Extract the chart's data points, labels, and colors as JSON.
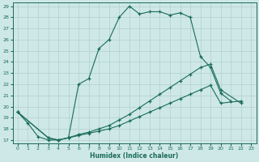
{
  "xlabel": "Humidex (Indice chaleur)",
  "bg_color": "#cee8e8",
  "line_color": "#1a6b5a",
  "grid_color": "#b0d0cc",
  "xlim": [
    0,
    23
  ],
  "ylim": [
    17,
    29
  ],
  "line1_x": [
    0,
    1,
    2,
    3,
    4,
    5,
    6,
    7,
    8,
    9,
    10,
    11,
    12,
    13,
    14,
    15,
    16,
    17,
    18,
    19,
    20,
    21
  ],
  "line1_y": [
    19.5,
    18.5,
    17.3,
    17.0,
    17.0,
    17.2,
    22.0,
    22.5,
    25.2,
    26.0,
    28.0,
    29.0,
    28.3,
    28.5,
    28.5,
    28.2,
    28.4,
    28.0,
    24.5,
    23.5,
    21.2,
    20.5
  ],
  "line2_x": [
    0,
    3,
    4,
    5,
    6,
    7,
    8,
    9,
    10,
    11,
    12,
    13,
    14,
    15,
    16,
    17,
    18,
    19,
    20,
    22
  ],
  "line2_y": [
    19.5,
    17.2,
    17.0,
    17.2,
    17.5,
    17.7,
    18.0,
    18.3,
    18.8,
    19.3,
    19.9,
    20.5,
    21.1,
    21.7,
    22.3,
    22.9,
    23.5,
    23.8,
    21.5,
    20.3
  ],
  "line3_x": [
    0,
    3,
    4,
    5,
    6,
    7,
    8,
    9,
    10,
    11,
    12,
    13,
    14,
    15,
    16,
    17,
    18,
    19,
    20,
    22
  ],
  "line3_y": [
    19.5,
    17.2,
    17.0,
    17.2,
    17.4,
    17.6,
    17.8,
    18.0,
    18.3,
    18.7,
    19.1,
    19.5,
    19.9,
    20.3,
    20.7,
    21.1,
    21.5,
    21.9,
    20.3,
    20.5
  ]
}
